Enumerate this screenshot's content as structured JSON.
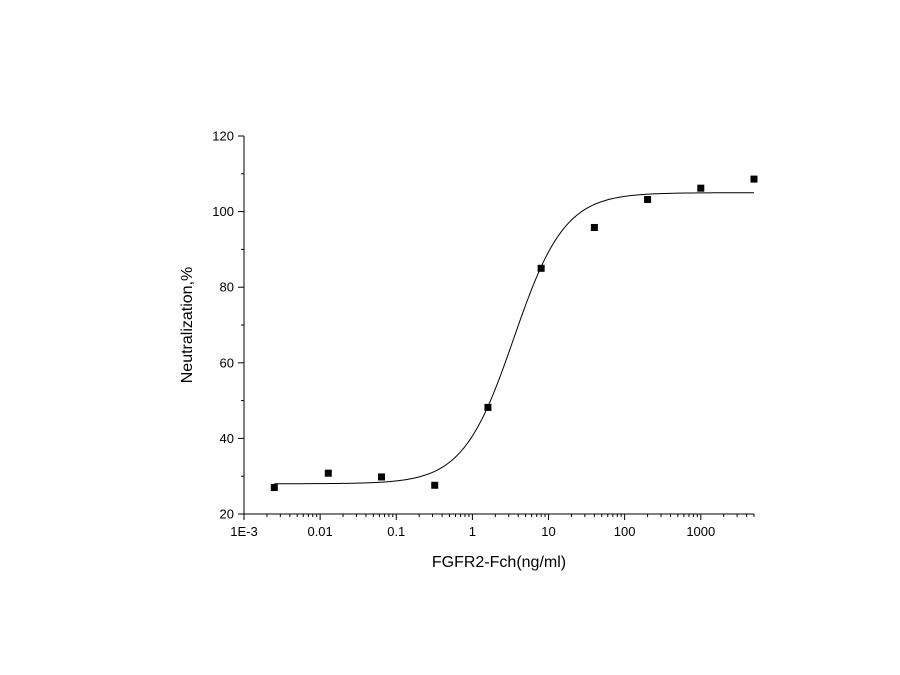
{
  "chart_data": {
    "type": "scatter",
    "title": "",
    "xlabel": "FGFR2-Fch(ng/ml)",
    "ylabel": "Neutralization,%",
    "xscale": "log",
    "xlim": [
      0.001,
      5000
    ],
    "ylim": [
      20,
      120
    ],
    "grid": false,
    "legend": "none",
    "x_tick_labels": [
      "1E-3",
      "0.01",
      "0.1",
      "1",
      "10",
      "100",
      "1000"
    ],
    "y_tick_labels": [
      "20",
      "40",
      "60",
      "80",
      "100",
      "120"
    ],
    "series": [
      {
        "marker": "square",
        "color": "#000000",
        "x": [
          0.0025,
          0.0128,
          0.064,
          0.32,
          1.6,
          8.0,
          40,
          200,
          1000,
          5000
        ],
        "y": [
          27.0,
          30.8,
          29.8,
          27.6,
          48.2,
          85.0,
          95.8,
          103.2,
          106.2,
          108.6
        ]
      }
    ],
    "fit": {
      "type": "logistic",
      "color": "#000000",
      "bottom": 28.0,
      "top": 105.0,
      "ec50": 3.5,
      "hill": 1.3
    }
  }
}
